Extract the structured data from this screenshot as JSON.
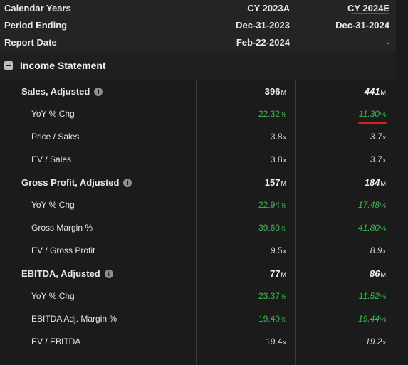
{
  "header": {
    "calendar_label": "Calendar Years",
    "period_label": "Period Ending",
    "report_label": "Report Date",
    "col1": {
      "year": "CY 2023A",
      "period": "Dec-31-2023",
      "report": "Feb-22-2024"
    },
    "col2": {
      "year": "CY 2024E",
      "period": "Dec-31-2024",
      "report": "-"
    }
  },
  "section": {
    "title": "Income Statement"
  },
  "rows": [
    {
      "name": "Sales, Adjusted",
      "v1": "396",
      "u1": "M",
      "v2": "441",
      "u2": "M"
    },
    {
      "name": "YoY % Chg",
      "v1": "22.32",
      "u1": "%",
      "v2": "11.30",
      "u2": "%"
    },
    {
      "name": "Price / Sales",
      "v1": "3.8",
      "u1": "x",
      "v2": "3.7",
      "u2": "x"
    },
    {
      "name": "EV / Sales",
      "v1": "3.8",
      "u1": "x",
      "v2": "3.7",
      "u2": "x"
    },
    {
      "name": "Gross Profit, Adjusted",
      "v1": "157",
      "u1": "M",
      "v2": "184",
      "u2": "M"
    },
    {
      "name": "YoY % Chg",
      "v1": "22.94",
      "u1": "%",
      "v2": "17.48",
      "u2": "%"
    },
    {
      "name": "Gross Margin %",
      "v1": "39.60",
      "u1": "%",
      "v2": "41.80",
      "u2": "%"
    },
    {
      "name": "EV / Gross Profit",
      "v1": "9.5",
      "u1": "x",
      "v2": "8.9",
      "u2": "x"
    },
    {
      "name": "EBITDA, Adjusted",
      "v1": "77",
      "u1": "M",
      "v2": "86",
      "u2": "M"
    },
    {
      "name": "YoY % Chg",
      "v1": "23.37",
      "u1": "%",
      "v2": "11.52",
      "u2": "%"
    },
    {
      "name": "EBITDA Adj. Margin %",
      "v1": "19.40",
      "u1": "%",
      "v2": "19.44",
      "u2": "%"
    },
    {
      "name": "EV / EBITDA",
      "v1": "19.4",
      "u1": "x",
      "v2": "19.2",
      "u2": "x"
    }
  ],
  "icons": {
    "info": "info-icon",
    "collapse": "collapse-icon"
  },
  "colors": {
    "positive": "#3dbb4f",
    "annotation": "#d42020"
  }
}
